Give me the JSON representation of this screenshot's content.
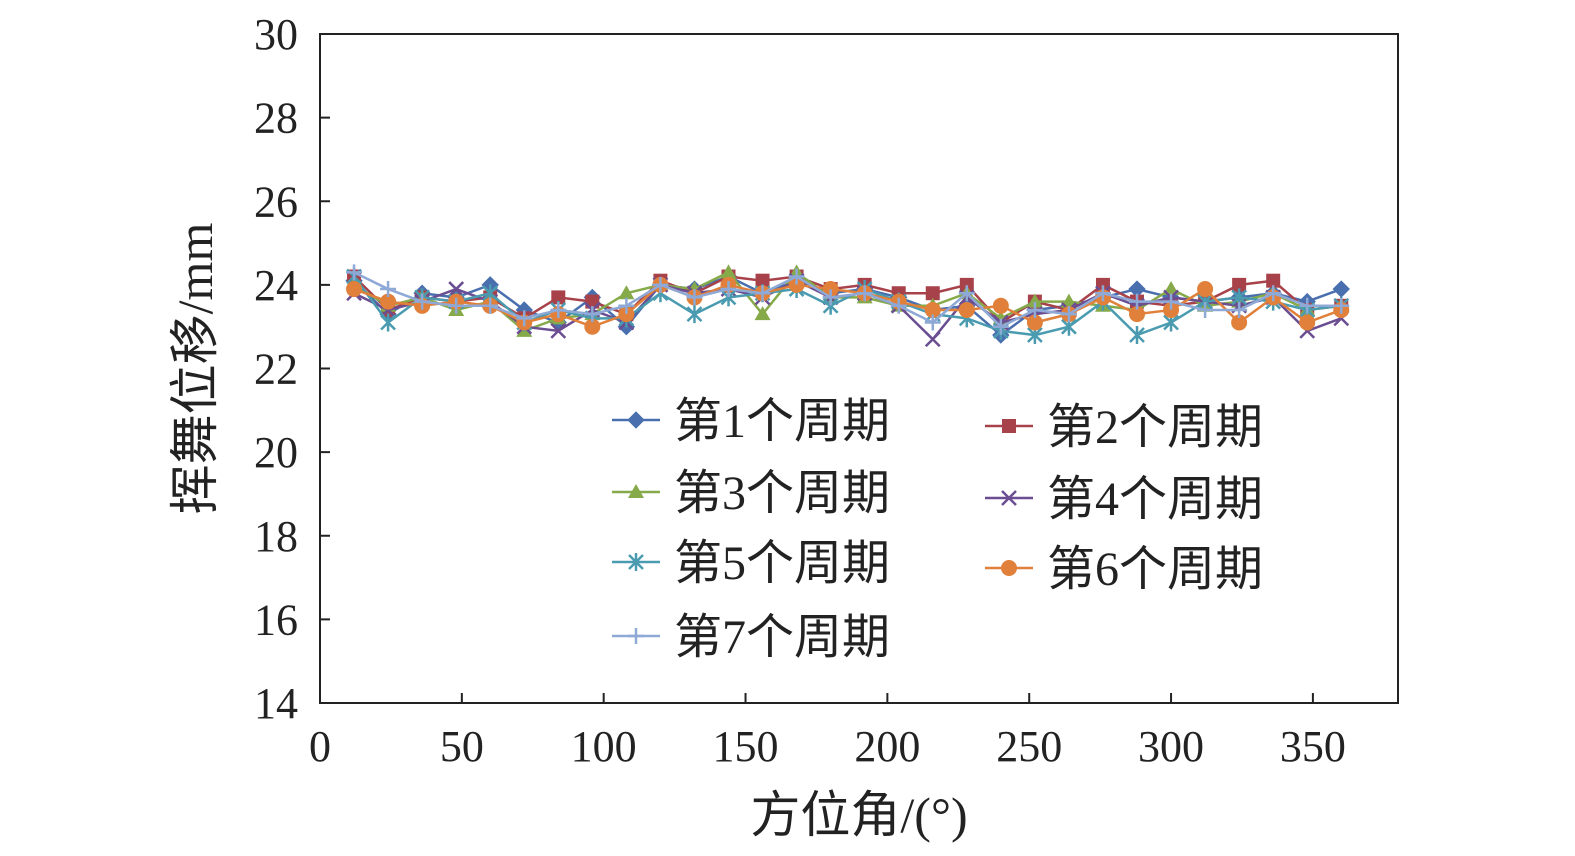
{
  "chart_data": {
    "type": "line",
    "title": "",
    "xlabel": "方位角/(°)",
    "ylabel": "挥舞位移/mm",
    "xlim": [
      0,
      380
    ],
    "ylim": [
      14,
      30
    ],
    "xticks": [
      "0",
      "50",
      "100",
      "150",
      "200",
      "250",
      "300",
      "350"
    ],
    "yticks": [
      "14",
      "16",
      "18",
      "20",
      "22",
      "24",
      "26",
      "28",
      "30"
    ],
    "grid": false,
    "legend_position": "center-right, inside plot",
    "x": [
      12,
      24,
      36,
      48,
      60,
      72,
      84,
      96,
      108,
      120,
      132,
      144,
      156,
      168,
      180,
      192,
      204,
      216,
      228,
      240,
      252,
      264,
      276,
      288,
      300,
      312,
      324,
      336,
      348,
      360
    ],
    "series": [
      {
        "name": "第1个周期",
        "color": "#4a6faf",
        "marker": "diamond",
        "values": [
          24.1,
          23.3,
          23.8,
          23.7,
          24.0,
          23.4,
          23.1,
          23.7,
          23.0,
          24.0,
          23.9,
          24.2,
          23.8,
          24.1,
          23.8,
          23.9,
          23.7,
          23.4,
          23.5,
          22.8,
          23.4,
          23.5,
          23.7,
          23.9,
          23.7,
          23.6,
          23.7,
          23.8,
          23.6,
          23.9
        ]
      },
      {
        "name": "第2个周期",
        "color": "#a8424a",
        "marker": "square",
        "values": [
          24.2,
          23.4,
          23.7,
          23.6,
          23.7,
          23.2,
          23.7,
          23.6,
          23.3,
          24.1,
          23.8,
          24.2,
          24.1,
          24.2,
          23.9,
          24.0,
          23.8,
          23.8,
          24.0,
          23.1,
          23.6,
          23.4,
          24.0,
          23.6,
          23.5,
          23.6,
          24.0,
          24.1,
          23.4,
          23.5
        ]
      },
      {
        "name": "第3个周期",
        "color": "#86aa4a",
        "marker": "triangle",
        "values": [
          24.0,
          23.5,
          23.7,
          23.4,
          23.6,
          22.9,
          23.2,
          23.3,
          23.8,
          24.0,
          23.9,
          24.3,
          23.3,
          24.3,
          23.7,
          23.7,
          23.5,
          23.5,
          23.8,
          23.2,
          23.6,
          23.6,
          23.5,
          23.4,
          23.9,
          23.5,
          23.6,
          23.8,
          23.4,
          23.5
        ]
      },
      {
        "name": "第4个周期",
        "color": "#6b4e91",
        "marker": "x",
        "values": [
          23.8,
          23.4,
          23.6,
          23.9,
          23.6,
          23.0,
          22.9,
          23.4,
          23.1,
          24.0,
          23.8,
          23.9,
          23.7,
          24.1,
          23.7,
          23.8,
          23.5,
          22.7,
          23.7,
          23.1,
          23.3,
          23.4,
          23.8,
          23.5,
          23.7,
          23.6,
          23.5,
          23.7,
          22.9,
          23.2
        ]
      },
      {
        "name": "第5个周期",
        "color": "#4a9bb0",
        "marker": "star",
        "values": [
          24.2,
          23.1,
          23.7,
          23.6,
          23.8,
          23.1,
          23.4,
          23.2,
          23.2,
          23.8,
          23.3,
          23.7,
          23.8,
          23.9,
          23.5,
          23.9,
          23.6,
          23.3,
          23.2,
          22.9,
          22.8,
          23.0,
          23.6,
          22.8,
          23.1,
          23.6,
          23.7,
          23.6,
          23.4,
          23.5
        ]
      },
      {
        "name": "第6个周期",
        "color": "#e0803a",
        "marker": "circle",
        "values": [
          23.9,
          23.6,
          23.5,
          23.6,
          23.5,
          23.1,
          23.3,
          23.0,
          23.3,
          24.0,
          23.7,
          24.0,
          23.8,
          24.0,
          23.9,
          23.8,
          23.6,
          23.4,
          23.4,
          23.5,
          23.1,
          23.3,
          23.7,
          23.3,
          23.4,
          23.9,
          23.1,
          23.7,
          23.1,
          23.4
        ]
      },
      {
        "name": "第7个周期",
        "color": "#8fa9d6",
        "marker": "plus",
        "values": [
          24.3,
          23.9,
          23.6,
          23.5,
          23.5,
          23.2,
          23.4,
          23.3,
          23.5,
          24.0,
          23.7,
          23.9,
          23.8,
          24.2,
          23.7,
          23.8,
          23.5,
          23.1,
          23.8,
          23.0,
          23.4,
          23.3,
          23.8,
          23.6,
          23.6,
          23.4,
          23.4,
          23.8,
          23.5,
          23.5
        ]
      }
    ]
  }
}
